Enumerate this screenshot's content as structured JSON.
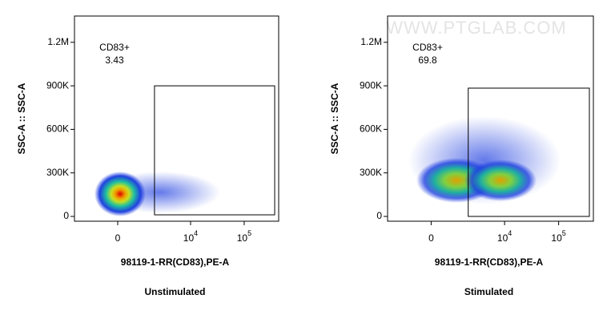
{
  "watermark": "WWW.PTGLAB.COM",
  "chart_data": [
    {
      "type": "density",
      "title": "Unstimulated",
      "x_label": "98119-1-RR(CD83),PE-A",
      "y_label": "SSC-A :: SSC-A",
      "xlim": [
        -2740,
        439000
      ],
      "ylim": [
        -33000,
        1381000
      ],
      "xticks": [
        0,
        {
          "value": 10000,
          "label": "10",
          "exponent": "4"
        },
        {
          "value": 100000,
          "label": "10",
          "exponent": "5"
        }
      ],
      "yticks": [
        0,
        {
          "value": 300000,
          "label": "300K"
        },
        {
          "value": 600000,
          "label": "600K"
        },
        {
          "value": 900000,
          "label": "900K"
        },
        {
          "value": 1200000,
          "label": "1.2M"
        }
      ],
      "gate": {
        "name": "CD83+",
        "percent": 3.43,
        "x": [
          2040,
          370000
        ],
        "y": [
          11000,
          900000
        ]
      }
    },
    {
      "type": "density",
      "title": "Stimulated",
      "x_label": "98119-1-RR(CD83),PE-A",
      "y_label": "SSC-A :: SSC-A",
      "xlim": [
        -2740,
        439000
      ],
      "ylim": [
        -33000,
        1381000
      ],
      "xticks": [
        0,
        {
          "value": 10000,
          "label": "10",
          "exponent": "4"
        },
        {
          "value": 100000,
          "label": "10",
          "exponent": "5"
        }
      ],
      "yticks": [
        0,
        {
          "value": 300000,
          "label": "300K"
        },
        {
          "value": 600000,
          "label": "600K"
        },
        {
          "value": 900000,
          "label": "900K"
        },
        {
          "value": 1200000,
          "label": "1.2M"
        }
      ],
      "gate": {
        "name": "CD83+",
        "percent": 69.8,
        "x": [
          2040,
          370000
        ],
        "y": [
          0,
          884000
        ]
      }
    }
  ]
}
